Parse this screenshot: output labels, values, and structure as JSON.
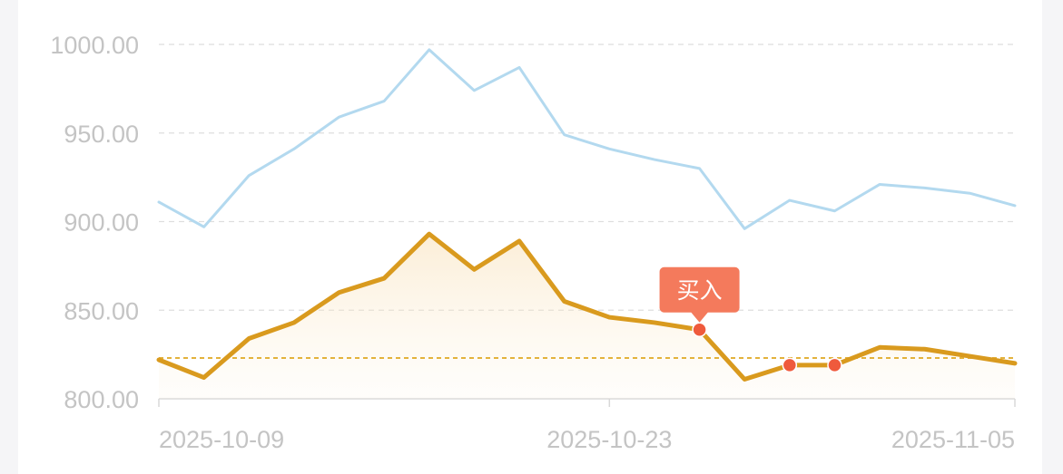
{
  "chart_data": {
    "type": "line",
    "title": "",
    "xlabel": "",
    "ylabel": "",
    "ylim": [
      800,
      1000
    ],
    "y_ticks": [
      "1000.00",
      "950.00",
      "900.00",
      "850.00",
      "800.00"
    ],
    "y_tick_values": [
      1000,
      950,
      900,
      850,
      800
    ],
    "x_tick_labels": [
      "2025-10-09",
      "2025-10-23",
      "2025-11-05"
    ],
    "x_tick_indices": [
      0,
      10,
      19
    ],
    "grid": true,
    "legend": "none",
    "reference_line": {
      "value": 823,
      "color": "#e3b23c"
    },
    "series": [
      {
        "color": "#b3d9ef",
        "values": [
          911,
          897,
          926,
          941,
          959,
          968,
          997,
          974,
          987,
          949,
          941,
          935,
          930,
          896,
          912,
          906,
          921,
          919,
          916,
          909
        ]
      },
      {
        "color": "#d99a1e",
        "area": true,
        "values": [
          822,
          812,
          834,
          843,
          860,
          868,
          893,
          873,
          889,
          855,
          846,
          843,
          839,
          811,
          819,
          819,
          829,
          828,
          824,
          820
        ]
      }
    ],
    "markers": [
      {
        "series": 1,
        "index": 12,
        "color": "#ef5a3c"
      },
      {
        "series": 1,
        "index": 14,
        "color": "#ef5a3c"
      },
      {
        "series": 1,
        "index": 15,
        "color": "#ef5a3c"
      }
    ],
    "annotations": [
      {
        "series": 1,
        "index": 12,
        "text": "买入",
        "color": "#f47a5c"
      }
    ]
  }
}
